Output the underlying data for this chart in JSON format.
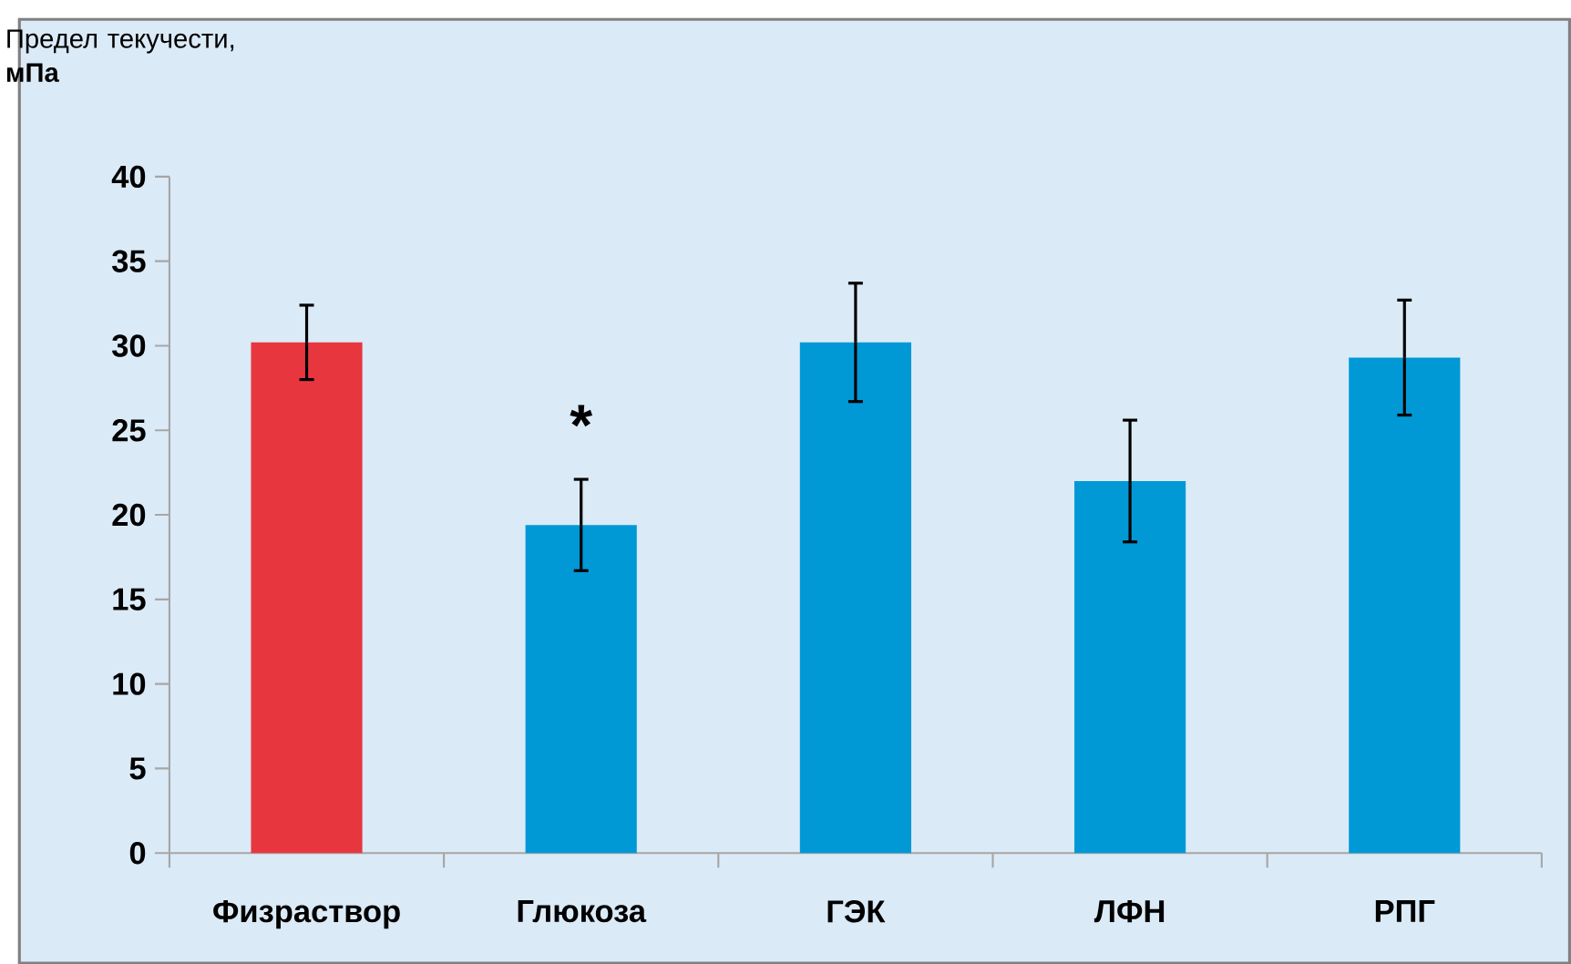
{
  "chart_data": {
    "type": "bar",
    "ylabel": "Предел текучести, **мПа**",
    "categories": [
      "Физраствор",
      "Глюкоза",
      "ГЭК",
      "ЛФН",
      "РПГ"
    ],
    "values": [
      30.2,
      19.4,
      30.2,
      22.0,
      29.3
    ],
    "errors": [
      2.2,
      2.7,
      3.5,
      3.6,
      3.4
    ],
    "colors": [
      "#e8363f",
      "#0099d6",
      "#0099d6",
      "#0099d6",
      "#0099d6"
    ],
    "ylim": [
      0,
      40
    ],
    "yticks": [
      0,
      5,
      10,
      15,
      20,
      25,
      30,
      35,
      40
    ],
    "annotations": [
      "*"
    ],
    "grid": false
  }
}
